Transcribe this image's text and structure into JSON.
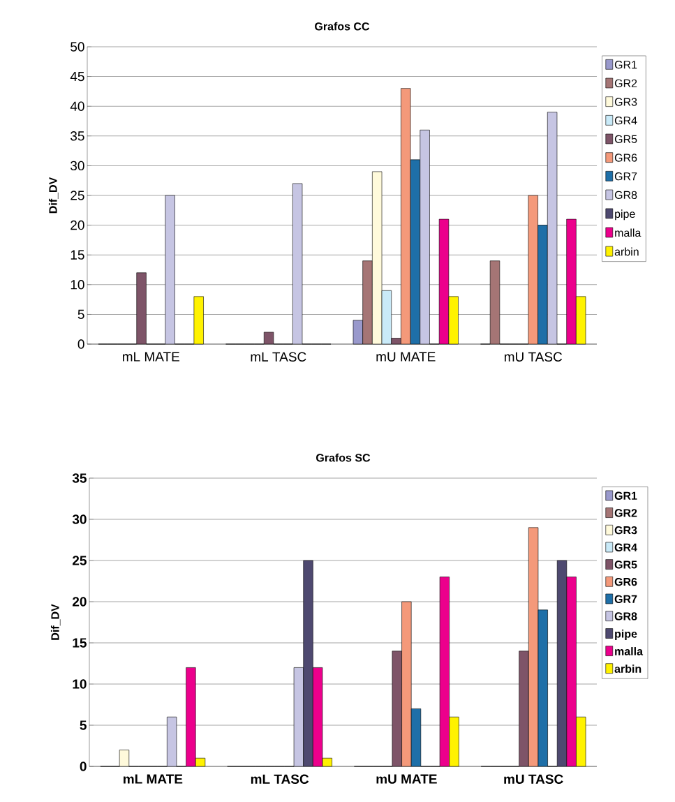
{
  "chart_data": [
    {
      "type": "bar",
      "title": "Grafos CC",
      "ylabel": "Dif_DV",
      "categories": [
        "mL MATE",
        "mL TASC",
        "mU MATE",
        "mU TASC"
      ],
      "ylim": [
        0,
        50
      ],
      "yticks": [
        0,
        5,
        10,
        15,
        20,
        25,
        30,
        35,
        40,
        45,
        50
      ],
      "grid": "y",
      "legend": "right",
      "series": [
        {
          "name": "GR1",
          "color": "#9999cc",
          "values": [
            0,
            0,
            4,
            0
          ]
        },
        {
          "name": "GR2",
          "color": "#a57575",
          "values": [
            0,
            0,
            14,
            14
          ]
        },
        {
          "name": "GR3",
          "color": "#fffadb",
          "values": [
            0,
            0,
            29,
            0
          ]
        },
        {
          "name": "GR4",
          "color": "#c9eaf8",
          "values": [
            0,
            0,
            9,
            0
          ]
        },
        {
          "name": "GR5",
          "color": "#7e5468",
          "values": [
            12,
            2,
            1,
            0
          ]
        },
        {
          "name": "GR6",
          "color": "#f4997a",
          "values": [
            0,
            0,
            43,
            25
          ]
        },
        {
          "name": "GR7",
          "color": "#1e6fa8",
          "values": [
            0,
            0,
            31,
            20
          ]
        },
        {
          "name": "GR8",
          "color": "#c6c5e3",
          "values": [
            25,
            27,
            36,
            39
          ]
        },
        {
          "name": "pipe",
          "color": "#4e4970",
          "values": [
            0,
            0,
            0,
            0
          ]
        },
        {
          "name": "malla",
          "color": "#ec008c",
          "values": [
            0,
            0,
            21,
            21
          ]
        },
        {
          "name": "arbin",
          "color": "#fff200",
          "values": [
            8,
            0,
            8,
            8
          ]
        }
      ]
    },
    {
      "type": "bar",
      "title": "Grafos SC",
      "ylabel": "Dif_DV",
      "categories": [
        "mL MATE",
        "mL TASC",
        "mU MATE",
        "mU TASC"
      ],
      "ylim": [
        0,
        35
      ],
      "yticks": [
        0,
        5,
        10,
        15,
        20,
        25,
        30,
        35
      ],
      "grid": "y",
      "legend": "right",
      "series": [
        {
          "name": "GR1",
          "color": "#9999cc",
          "values": [
            0,
            0,
            0,
            0
          ]
        },
        {
          "name": "GR2",
          "color": "#a57575",
          "values": [
            0,
            0,
            0,
            0
          ]
        },
        {
          "name": "GR3",
          "color": "#fffadb",
          "values": [
            2,
            0,
            0,
            0
          ]
        },
        {
          "name": "GR4",
          "color": "#c9eaf8",
          "values": [
            0,
            0,
            0,
            0
          ]
        },
        {
          "name": "GR5",
          "color": "#7e5468",
          "values": [
            0,
            0,
            14,
            14
          ]
        },
        {
          "name": "GR6",
          "color": "#f4997a",
          "values": [
            0,
            0,
            20,
            29
          ]
        },
        {
          "name": "GR7",
          "color": "#1e6fa8",
          "values": [
            0,
            0,
            7,
            19
          ]
        },
        {
          "name": "GR8",
          "color": "#c6c5e3",
          "values": [
            6,
            12,
            0,
            0
          ]
        },
        {
          "name": "pipe",
          "color": "#4e4970",
          "values": [
            0,
            25,
            0,
            25
          ]
        },
        {
          "name": "malla",
          "color": "#ec008c",
          "values": [
            12,
            12,
            23,
            23
          ]
        },
        {
          "name": "arbin",
          "color": "#fff200",
          "values": [
            1,
            1,
            6,
            6
          ]
        }
      ]
    }
  ]
}
